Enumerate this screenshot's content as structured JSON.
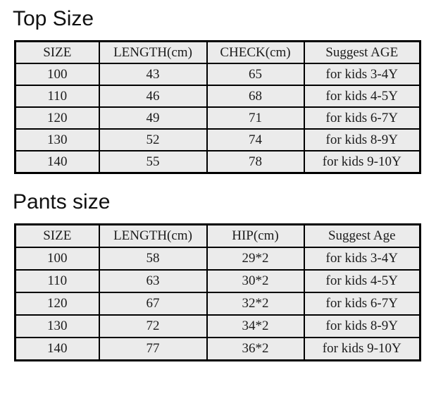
{
  "colors": {
    "page_background": "#ffffff",
    "cell_background": "#ebebeb",
    "border": "#000000",
    "text": "#1c1c1c"
  },
  "tables": [
    {
      "title": "Top Size",
      "headers": [
        "SIZE",
        "LENGTH(cm)",
        "CHECK(cm)",
        "Suggest AGE"
      ],
      "rows": [
        [
          "100",
          "43",
          "65",
          "for kids 3-4Y"
        ],
        [
          "110",
          "46",
          "68",
          "for kids 4-5Y"
        ],
        [
          "120",
          "49",
          "71",
          "for kids 6-7Y"
        ],
        [
          "130",
          "52",
          "74",
          "for kids 8-9Y"
        ],
        [
          "140",
          "55",
          "78",
          "for kids 9-10Y"
        ]
      ]
    },
    {
      "title": "Pants size",
      "headers": [
        "SIZE",
        "LENGTH(cm)",
        "HIP(cm)",
        "Suggest Age"
      ],
      "rows": [
        [
          "100",
          "58",
          "29*2",
          "for kids 3-4Y"
        ],
        [
          "110",
          "63",
          "30*2",
          "for kids 4-5Y"
        ],
        [
          "120",
          "67",
          "32*2",
          "for kids 6-7Y"
        ],
        [
          "130",
          "72",
          "34*2",
          "for kids 8-9Y"
        ],
        [
          "140",
          "77",
          "36*2",
          "for kids 9-10Y"
        ]
      ]
    }
  ]
}
